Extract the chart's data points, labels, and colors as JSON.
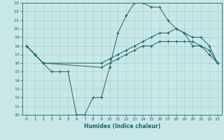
{
  "title": "",
  "xlabel": "Humidex (Indice chaleur)",
  "bg_color": "#c8e8e8",
  "grid_color": "#a8d0d0",
  "line_color": "#1a6666",
  "xlim": [
    -0.5,
    23.5
  ],
  "ylim": [
    10,
    23
  ],
  "xticks": [
    0,
    1,
    2,
    3,
    4,
    5,
    6,
    7,
    8,
    9,
    10,
    11,
    12,
    13,
    14,
    15,
    16,
    17,
    18,
    19,
    20,
    21,
    22,
    23
  ],
  "yticks": [
    10,
    11,
    12,
    13,
    14,
    15,
    16,
    17,
    18,
    19,
    20,
    21,
    22,
    23
  ],
  "line1_x": [
    0,
    1,
    2,
    3,
    4,
    5,
    6,
    7,
    8,
    9,
    10,
    11,
    12,
    13,
    14,
    15,
    16,
    17,
    18,
    19,
    20,
    21,
    22,
    23
  ],
  "line1_y": [
    18,
    17,
    16,
    15,
    15,
    15,
    10,
    10,
    12,
    12,
    15.5,
    19.5,
    21.5,
    23,
    23,
    22.5,
    22.5,
    21,
    20,
    19.5,
    18,
    18,
    17,
    16
  ],
  "line2_x": [
    0,
    1,
    2,
    9,
    10,
    11,
    12,
    13,
    14,
    15,
    16,
    17,
    18,
    19,
    20,
    21,
    22,
    23
  ],
  "line2_y": [
    18,
    17,
    16,
    16,
    16.5,
    17,
    17.5,
    18,
    18.5,
    19,
    19.5,
    19.5,
    20,
    19.5,
    19,
    19,
    18,
    16
  ],
  "line3_x": [
    0,
    1,
    2,
    9,
    10,
    11,
    12,
    13,
    14,
    15,
    16,
    17,
    18,
    19,
    20,
    21,
    22,
    23
  ],
  "line3_y": [
    18,
    17,
    16,
    15.5,
    16,
    16.5,
    17,
    17.5,
    18,
    18,
    18.5,
    18.5,
    18.5,
    18.5,
    18.5,
    18,
    17.5,
    16
  ]
}
